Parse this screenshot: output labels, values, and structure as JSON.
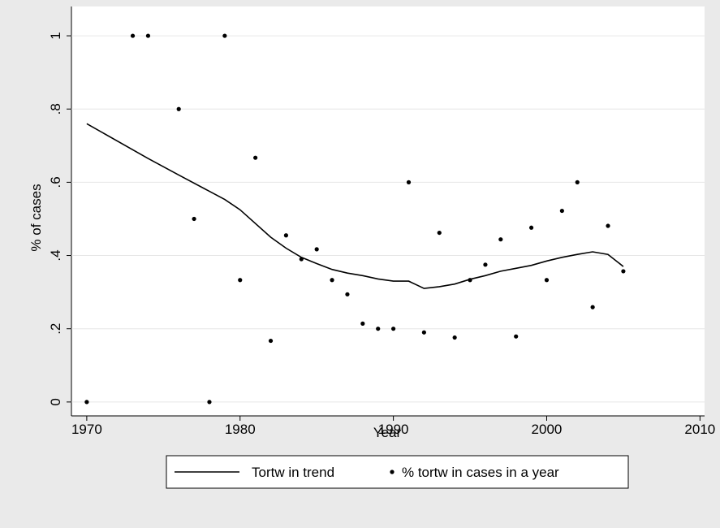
{
  "chart_data": {
    "type": "line",
    "xlabel": "Year",
    "ylabel": "% of cases",
    "xlim": [
      1969,
      2010.3
    ],
    "ylim": [
      -0.038,
      1.08
    ],
    "xticks": [
      1970,
      1980,
      1990,
      2000,
      2010
    ],
    "yticks": [
      0,
      {
        "value": 0.2,
        "label": ".2"
      },
      {
        "value": 0.4,
        "label": ".4"
      },
      {
        "value": 0.6,
        "label": ".6"
      },
      {
        "value": 0.8,
        "label": ".8"
      },
      1
    ],
    "grid": true,
    "legend": "bottom",
    "series": [
      {
        "name": "Tortw in trend",
        "type": "line",
        "color": "#000000",
        "x": [
          1970,
          1974,
          1976,
          1979,
          1980,
          1982,
          1983,
          1984,
          1985,
          1986,
          1987,
          1988,
          1989,
          1990,
          1991,
          1992,
          1993,
          1994,
          1995,
          1996,
          1997,
          1998,
          1999,
          2000,
          2001,
          2002,
          2003,
          2004,
          2005
        ],
        "values": [
          0.76,
          0.665,
          0.62,
          0.553,
          0.525,
          0.45,
          0.42,
          0.395,
          0.378,
          0.362,
          0.352,
          0.345,
          0.336,
          0.33,
          0.33,
          0.31,
          0.315,
          0.322,
          0.335,
          0.345,
          0.357,
          0.365,
          0.373,
          0.385,
          0.395,
          0.403,
          0.41,
          0.403,
          0.37
        ]
      },
      {
        "name": "% tortw in cases in a year",
        "type": "scatter",
        "color": "#000000",
        "x": [
          1970,
          1973,
          1974,
          1976,
          1977,
          1978,
          1979,
          1980,
          1981,
          1982,
          1983,
          1984,
          1985,
          1986,
          1987,
          1988,
          1989,
          1990,
          1991,
          1992,
          1993,
          1994,
          1995,
          1996,
          1997,
          1998,
          1999,
          2000,
          2001,
          2002,
          2003,
          2004,
          2005
        ],
        "values": [
          0,
          1,
          1,
          0.8,
          0.5,
          0,
          1,
          0.333,
          0.667,
          0.167,
          0.455,
          0.39,
          0.417,
          0.333,
          0.294,
          0.214,
          0.2,
          0.2,
          0.6,
          0.19,
          0.462,
          0.176,
          0.333,
          0.375,
          0.444,
          0.179,
          0.476,
          0.333,
          0.522,
          0.6,
          0.259,
          0.481,
          0.357
        ]
      }
    ]
  }
}
